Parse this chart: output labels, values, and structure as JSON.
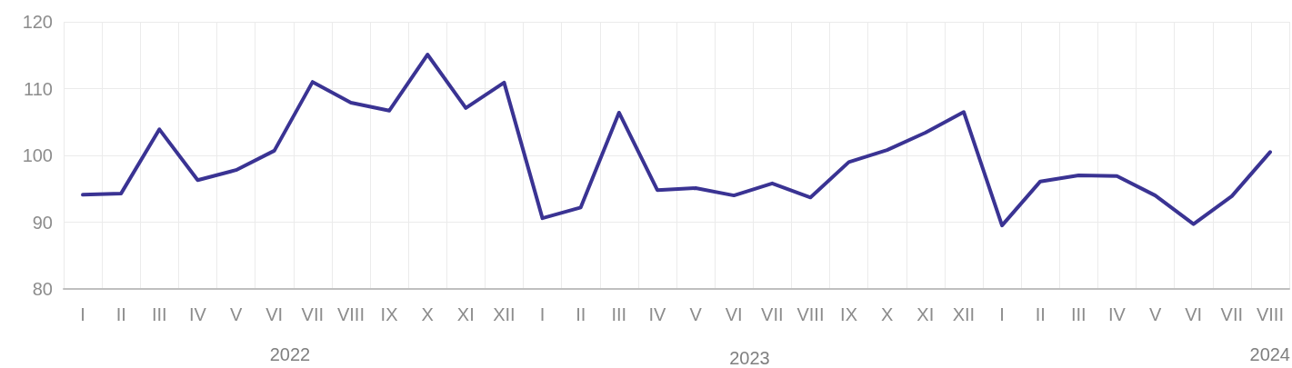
{
  "chart_data": {
    "type": "line",
    "categories": [
      "I",
      "II",
      "III",
      "IV",
      "V",
      "VI",
      "VII",
      "VIII",
      "IX",
      "X",
      "XI",
      "XII",
      "I",
      "II",
      "III",
      "IV",
      "V",
      "VI",
      "VII",
      "VIII",
      "IX",
      "X",
      "XI",
      "XII",
      "I",
      "II",
      "III",
      "IV",
      "V",
      "VI",
      "VII",
      "VIII"
    ],
    "series": [
      {
        "color": "#3a3393",
        "values": [
          94.1,
          94.3,
          103.9,
          96.3,
          97.8,
          100.7,
          111.0,
          107.9,
          106.7,
          115.1,
          107.1,
          110.9,
          90.6,
          92.2,
          106.4,
          94.8,
          95.1,
          94.0,
          95.8,
          93.7,
          99.0,
          100.8,
          103.4,
          106.5,
          89.5,
          96.1,
          97.0,
          96.9,
          94.0,
          89.7,
          93.9,
          100.5
        ]
      }
    ],
    "ylim": [
      80,
      120
    ],
    "yticks": [
      80,
      90,
      100,
      110,
      120
    ],
    "grid": true,
    "marker": "none",
    "line_style": "solid",
    "annotations": [
      "2022",
      "2023",
      "2024"
    ]
  }
}
